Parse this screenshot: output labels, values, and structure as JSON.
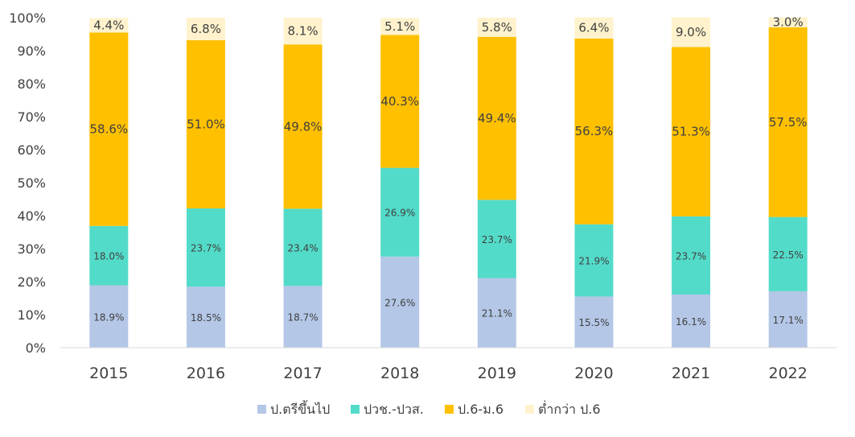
{
  "chart_data": {
    "type": "bar",
    "stacked": true,
    "categories": [
      "2015",
      "2016",
      "2017",
      "2018",
      "2019",
      "2020",
      "2021",
      "2022"
    ],
    "series": [
      {
        "name": "ป.ตรีขึ้นไป",
        "color": "#B4C7E7",
        "values": [
          18.9,
          18.5,
          18.7,
          27.6,
          21.1,
          15.5,
          16.1,
          17.1
        ],
        "labels": [
          "18.9%",
          "18.5%",
          "18.7%",
          "27.6%",
          "21.1%",
          "15.5%",
          "16.1%",
          "17.1%"
        ]
      },
      {
        "name": "ปวช.-ปวส.",
        "color": "#53DBC9",
        "values": [
          18.0,
          23.7,
          23.4,
          26.9,
          23.7,
          21.9,
          23.7,
          22.5
        ],
        "labels": [
          "18.0%",
          "23.7%",
          "23.4%",
          "26.9%",
          "23.7%",
          "21.9%",
          "23.7%",
          "22.5%"
        ]
      },
      {
        "name": "ป.6-ม.6",
        "color": "#FFC000",
        "values": [
          58.6,
          51.0,
          49.8,
          40.3,
          49.4,
          56.3,
          51.3,
          57.5
        ],
        "labels": [
          "58.6%",
          "51.0%",
          "49.8%",
          "40.3%",
          "49.4%",
          "56.3%",
          "51.3%",
          "57.5%"
        ]
      },
      {
        "name": "ต่ำกว่า ป.6",
        "color": "#FFF2CC",
        "values": [
          4.4,
          6.8,
          8.1,
          5.1,
          5.8,
          6.4,
          9.0,
          3.0
        ],
        "labels": [
          "4.4%",
          "6.8%",
          "8.1%",
          "5.1%",
          "5.8%",
          "6.4%",
          "9.0%",
          "3.0%"
        ]
      }
    ],
    "yticks": [
      "0%",
      "10%",
      "20%",
      "30%",
      "40%",
      "50%",
      "60%",
      "70%",
      "80%",
      "90%",
      "100%"
    ],
    "ylim": [
      0,
      100
    ],
    "legend_position": "bottom",
    "title": "",
    "xlabel": "",
    "ylabel": "",
    "grid": false
  }
}
